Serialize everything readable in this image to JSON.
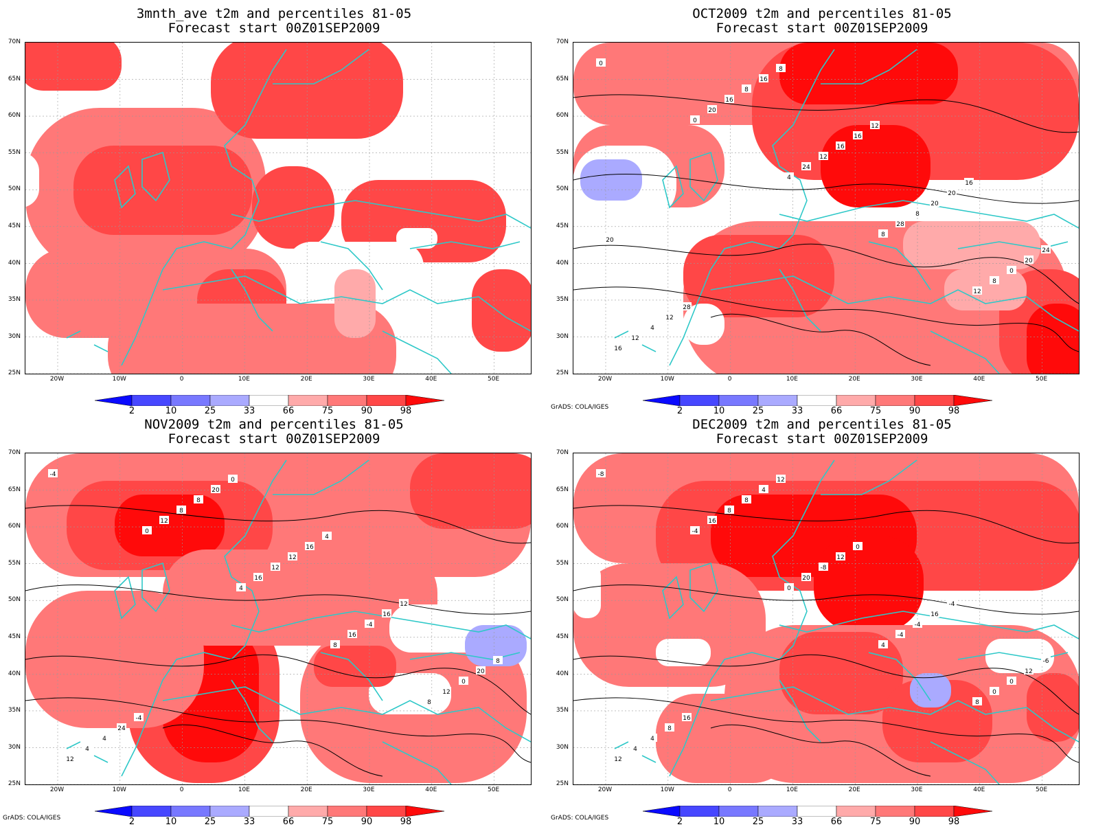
{
  "credit": "GrADS: COLA/IGES",
  "lat_labels": [
    "70N",
    "65N",
    "60N",
    "55N",
    "50N",
    "45N",
    "40N",
    "35N",
    "30N",
    "25N"
  ],
  "lon_labels": [
    "20W",
    "10W",
    "0",
    "10E",
    "20E",
    "30E",
    "40E",
    "50E"
  ],
  "colorbar": {
    "labels": [
      "2",
      "10",
      "25",
      "33",
      "66",
      "75",
      "90",
      "98"
    ],
    "colors": [
      "#0a0aff",
      "#4747ff",
      "#7878ff",
      "#aaaaff",
      "#ffffff",
      "#ffaaaa",
      "#ff7878",
      "#ff4747",
      "#ff0a0a"
    ]
  },
  "panels": [
    {
      "title1": "3mnth_ave t2m and percentiles 81-05",
      "title2": "Forecast start 00Z01SEP2009",
      "credit": ""
    },
    {
      "title1": "OCT2009 t2m and percentiles 81-05",
      "title2": "Forecast start 00Z01SEP2009",
      "credit": "GrADS: COLA/IGES"
    },
    {
      "title1": "NOV2009 t2m and percentiles 81-05",
      "title2": "Forecast start 00Z01SEP2009",
      "credit": "GrADS: COLA/IGES"
    },
    {
      "title1": "DEC2009 t2m and percentiles 81-05",
      "title2": "Forecast start 00Z01SEP2009",
      "credit": "GrADS: COLA/IGES"
    }
  ],
  "contour_labels": {
    "p1": [],
    "p2": [
      "0",
      "0",
      "4",
      "8",
      "12",
      "16",
      "20",
      "24",
      "28",
      "8",
      "12",
      "16",
      "12",
      "8",
      "0",
      "4",
      "8",
      "16",
      "20",
      "20",
      "12",
      "16",
      "16",
      "20",
      "24",
      "28",
      "8",
      "12",
      "16",
      "20"
    ],
    "p3": [
      "-4",
      "0",
      "4",
      "8",
      "8",
      "12",
      "12",
      "16",
      "16",
      "12",
      "4",
      "8",
      "12",
      "-4",
      "0",
      "4",
      "8",
      "12",
      "16",
      "20",
      "24",
      "20",
      "16",
      "12",
      "8",
      "-4",
      "0",
      "4"
    ],
    "p4": [
      "-8",
      "-4",
      "0",
      "4",
      "8",
      "12",
      "16",
      "20",
      "-4",
      "0",
      "4",
      "8",
      "-8",
      "-4",
      "0",
      "4",
      "8",
      "12",
      "16",
      "12",
      "8",
      "4",
      "0",
      "-4",
      "-6",
      "16",
      "12"
    ]
  },
  "map_colors": {
    "coast": "#2ec8c8",
    "contour": "#000000"
  }
}
